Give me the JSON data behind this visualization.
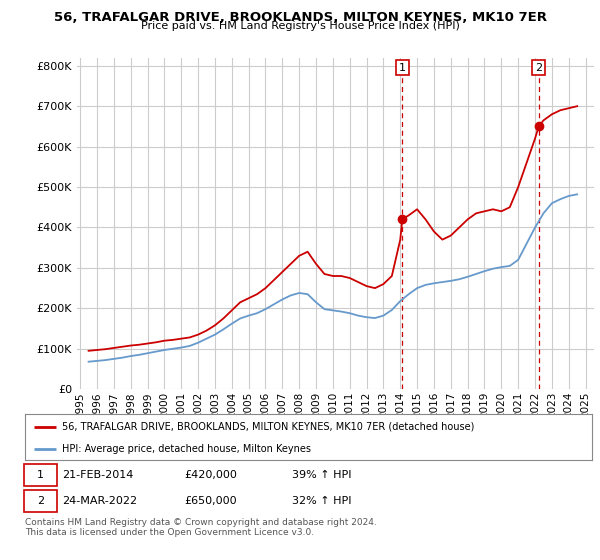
{
  "title": "56, TRAFALGAR DRIVE, BROOKLANDS, MILTON KEYNES, MK10 7ER",
  "subtitle": "Price paid vs. HM Land Registry's House Price Index (HPI)",
  "ylim": [
    0,
    820000
  ],
  "yticks": [
    0,
    100000,
    200000,
    300000,
    400000,
    500000,
    600000,
    700000,
    800000
  ],
  "ytick_labels": [
    "£0",
    "£100K",
    "£200K",
    "£300K",
    "£400K",
    "£500K",
    "£600K",
    "£700K",
    "£800K"
  ],
  "background_color": "#ffffff",
  "grid_color": "#cccccc",
  "house_color": "#cc0000",
  "hpi_color": "#6699cc",
  "legend1": "56, TRAFALGAR DRIVE, BROOKLANDS, MILTON KEYNES, MK10 7ER (detached house)",
  "legend2": "HPI: Average price, detached house, Milton Keynes",
  "marker1_date": 2014.12,
  "marker1_price": 420000,
  "marker1_label": "1",
  "marker2_date": 2022.22,
  "marker2_price": 650000,
  "marker2_label": "2",
  "footer": "Contains HM Land Registry data © Crown copyright and database right 2024.\nThis data is licensed under the Open Government Licence v3.0.",
  "house_x": [
    1995.5,
    1996.0,
    1996.5,
    1997.0,
    1997.5,
    1998.0,
    1998.5,
    1999.0,
    1999.5,
    2000.0,
    2000.5,
    2001.0,
    2001.5,
    2002.0,
    2002.5,
    2003.0,
    2003.5,
    2004.0,
    2004.5,
    2005.0,
    2005.5,
    2006.0,
    2006.5,
    2007.0,
    2007.5,
    2008.0,
    2008.5,
    2009.0,
    2009.5,
    2010.0,
    2010.5,
    2011.0,
    2011.5,
    2012.0,
    2012.5,
    2013.0,
    2013.5,
    2014.0,
    2014.12,
    2014.5,
    2015.0,
    2015.5,
    2016.0,
    2016.5,
    2017.0,
    2017.5,
    2018.0,
    2018.5,
    2019.0,
    2019.5,
    2020.0,
    2020.5,
    2021.0,
    2021.5,
    2022.0,
    2022.22,
    2022.5,
    2023.0,
    2023.5,
    2024.0,
    2024.5
  ],
  "house_y": [
    95000,
    97000,
    99000,
    102000,
    105000,
    108000,
    110000,
    113000,
    116000,
    120000,
    122000,
    125000,
    128000,
    135000,
    145000,
    158000,
    175000,
    195000,
    215000,
    225000,
    235000,
    250000,
    270000,
    290000,
    310000,
    330000,
    340000,
    310000,
    285000,
    280000,
    280000,
    275000,
    265000,
    255000,
    250000,
    260000,
    280000,
    370000,
    420000,
    430000,
    445000,
    420000,
    390000,
    370000,
    380000,
    400000,
    420000,
    435000,
    440000,
    445000,
    440000,
    450000,
    500000,
    560000,
    620000,
    650000,
    665000,
    680000,
    690000,
    695000,
    700000
  ],
  "hpi_x": [
    1995.5,
    1996.0,
    1996.5,
    1997.0,
    1997.5,
    1998.0,
    1998.5,
    1999.0,
    1999.5,
    2000.0,
    2000.5,
    2001.0,
    2001.5,
    2002.0,
    2002.5,
    2003.0,
    2003.5,
    2004.0,
    2004.5,
    2005.0,
    2005.5,
    2006.0,
    2006.5,
    2007.0,
    2007.5,
    2008.0,
    2008.5,
    2009.0,
    2009.5,
    2010.0,
    2010.5,
    2011.0,
    2011.5,
    2012.0,
    2012.5,
    2013.0,
    2013.5,
    2014.0,
    2014.5,
    2015.0,
    2015.5,
    2016.0,
    2016.5,
    2017.0,
    2017.5,
    2018.0,
    2018.5,
    2019.0,
    2019.5,
    2020.0,
    2020.5,
    2021.0,
    2021.5,
    2022.0,
    2022.5,
    2023.0,
    2023.5,
    2024.0,
    2024.5
  ],
  "hpi_y": [
    68000,
    70000,
    72000,
    75000,
    78000,
    82000,
    85000,
    89000,
    93000,
    97000,
    100000,
    103000,
    107000,
    115000,
    125000,
    135000,
    148000,
    162000,
    175000,
    182000,
    188000,
    198000,
    210000,
    222000,
    232000,
    238000,
    235000,
    215000,
    198000,
    195000,
    192000,
    188000,
    182000,
    178000,
    176000,
    182000,
    196000,
    218000,
    235000,
    250000,
    258000,
    262000,
    265000,
    268000,
    272000,
    278000,
    285000,
    292000,
    298000,
    302000,
    305000,
    320000,
    360000,
    400000,
    435000,
    460000,
    470000,
    478000,
    482000
  ],
  "xlim": [
    1994.8,
    2025.5
  ],
  "xticks": [
    1995,
    1996,
    1997,
    1998,
    1999,
    2000,
    2001,
    2002,
    2003,
    2004,
    2005,
    2006,
    2007,
    2008,
    2009,
    2010,
    2011,
    2012,
    2013,
    2014,
    2015,
    2016,
    2017,
    2018,
    2019,
    2020,
    2021,
    2022,
    2023,
    2024,
    2025
  ]
}
